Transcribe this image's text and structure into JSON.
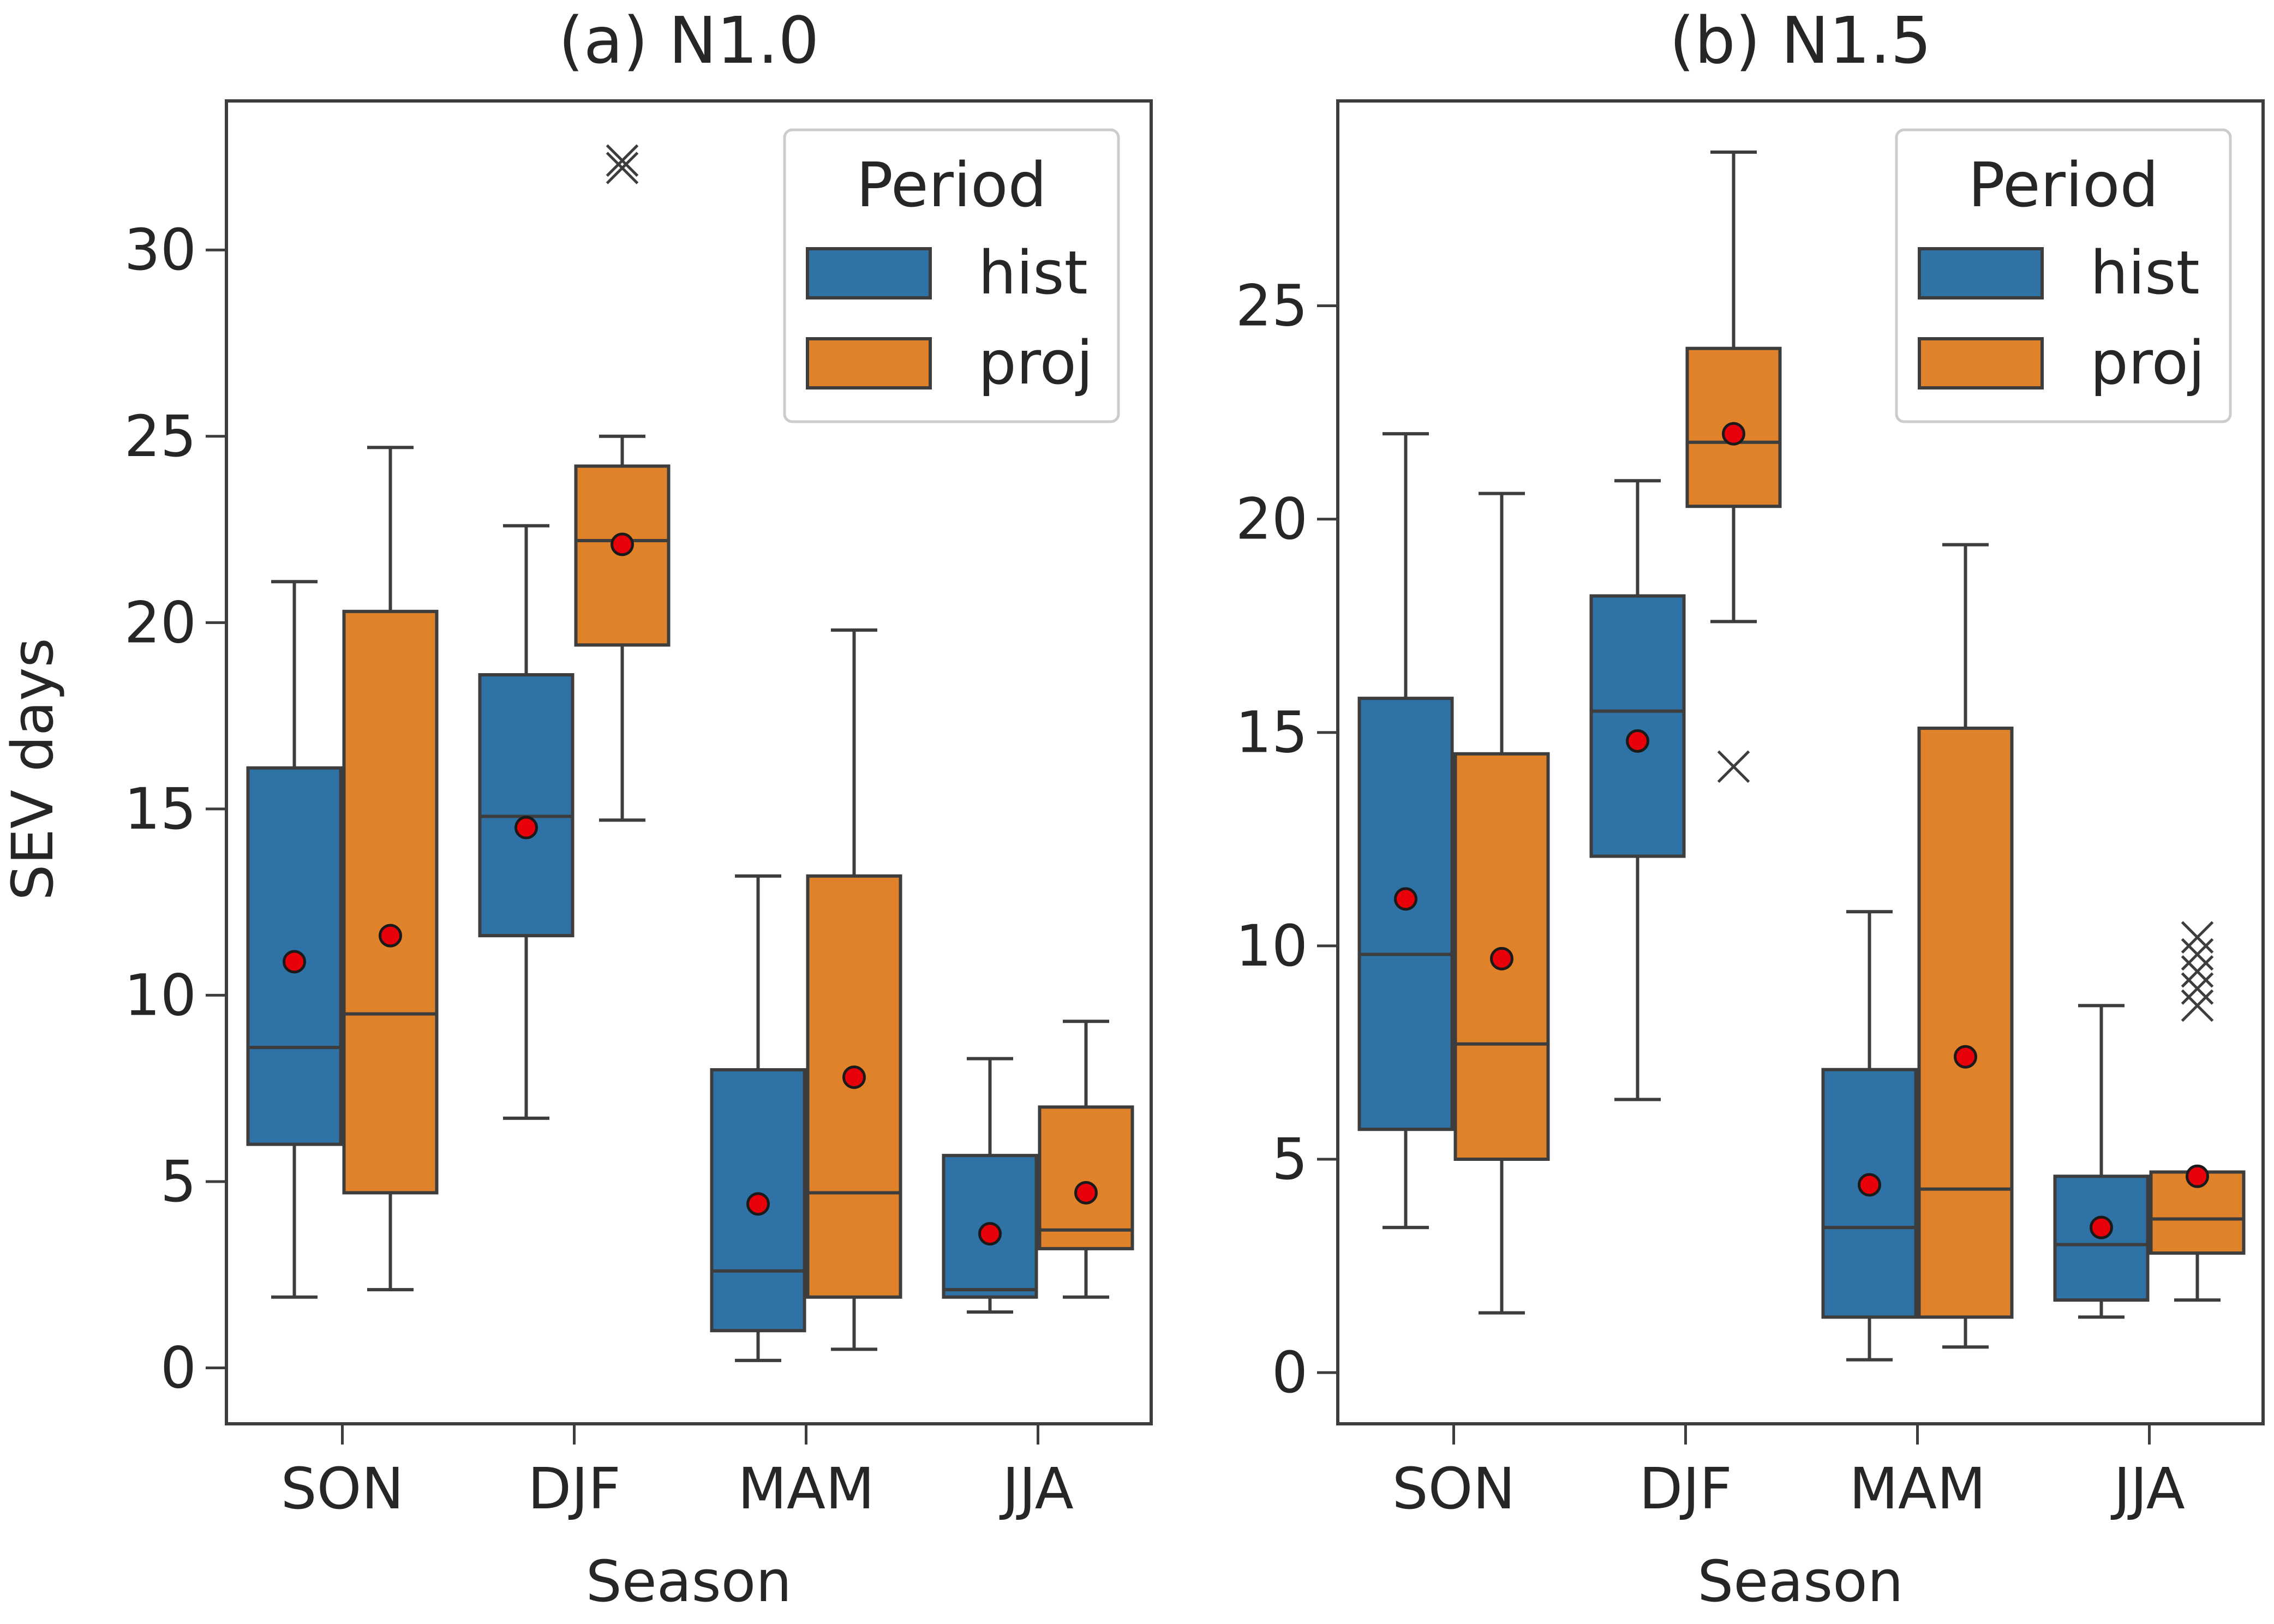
{
  "chart_data": [
    {
      "type": "box",
      "title": "(a) N1.0",
      "xlabel": "Season",
      "ylabel": "SEV days",
      "categories": [
        "SON",
        "DJF",
        "MAM",
        "JJA"
      ],
      "ylim": [
        -1.5,
        34.0
      ],
      "yticks": [
        0,
        5,
        10,
        15,
        20,
        25,
        30
      ],
      "legend": {
        "title": "Period",
        "position": "top-right",
        "entries": [
          "hist",
          "proj"
        ]
      },
      "series": [
        {
          "name": "hist",
          "color": "#2f72a6",
          "boxes": [
            {
              "category": "SON",
              "whisker_low": 1.9,
              "q1": 6.0,
              "median": 8.6,
              "q3": 16.1,
              "whisker_high": 21.1,
              "mean": 10.9,
              "outliers": []
            },
            {
              "category": "DJF",
              "whisker_low": 6.7,
              "q1": 11.6,
              "median": 14.8,
              "q3": 18.6,
              "whisker_high": 22.6,
              "mean": 14.5,
              "outliers": []
            },
            {
              "category": "MAM",
              "whisker_low": 0.2,
              "q1": 1.0,
              "median": 2.6,
              "q3": 8.0,
              "whisker_high": 13.2,
              "mean": 4.4,
              "outliers": []
            },
            {
              "category": "JJA",
              "whisker_low": 1.5,
              "q1": 1.9,
              "median": 2.1,
              "q3": 5.7,
              "whisker_high": 8.3,
              "mean": 3.6,
              "outliers": []
            }
          ]
        },
        {
          "name": "proj",
          "color": "#e0822a",
          "boxes": [
            {
              "category": "SON",
              "whisker_low": 2.1,
              "q1": 4.7,
              "median": 9.5,
              "q3": 20.3,
              "whisker_high": 24.7,
              "mean": 11.6,
              "outliers": []
            },
            {
              "category": "DJF",
              "whisker_low": 14.7,
              "q1": 19.4,
              "median": 22.2,
              "q3": 24.2,
              "whisker_high": 25.0,
              "mean": 22.1,
              "outliers": [
                32.2,
                32.4
              ]
            },
            {
              "category": "MAM",
              "whisker_low": 0.5,
              "q1": 1.9,
              "median": 4.7,
              "q3": 13.2,
              "whisker_high": 19.8,
              "mean": 7.8,
              "outliers": []
            },
            {
              "category": "JJA",
              "whisker_low": 1.9,
              "q1": 3.2,
              "median": 3.7,
              "q3": 7.0,
              "whisker_high": 9.3,
              "mean": 4.7,
              "outliers": []
            }
          ]
        }
      ]
    },
    {
      "type": "box",
      "title": "(b) N1.5",
      "xlabel": "Season",
      "ylabel": "",
      "categories": [
        "SON",
        "DJF",
        "MAM",
        "JJA"
      ],
      "ylim": [
        -1.2,
        29.8
      ],
      "yticks": [
        0,
        5,
        10,
        15,
        20,
        25
      ],
      "legend": {
        "title": "Period",
        "position": "top-right",
        "entries": [
          "hist",
          "proj"
        ]
      },
      "series": [
        {
          "name": "hist",
          "color": "#2f72a6",
          "boxes": [
            {
              "category": "SON",
              "whisker_low": 3.4,
              "q1": 5.7,
              "median": 9.8,
              "q3": 15.8,
              "whisker_high": 22.0,
              "mean": 11.1,
              "outliers": []
            },
            {
              "category": "DJF",
              "whisker_low": 6.4,
              "q1": 12.1,
              "median": 15.5,
              "q3": 18.2,
              "whisker_high": 20.9,
              "mean": 14.8,
              "outliers": []
            },
            {
              "category": "MAM",
              "whisker_low": 0.3,
              "q1": 1.3,
              "median": 3.4,
              "q3": 7.1,
              "whisker_high": 10.8,
              "mean": 4.4,
              "outliers": []
            },
            {
              "category": "JJA",
              "whisker_low": 1.3,
              "q1": 1.7,
              "median": 3.0,
              "q3": 4.6,
              "whisker_high": 8.6,
              "mean": 3.4,
              "outliers": []
            }
          ]
        },
        {
          "name": "proj",
          "color": "#e0822a",
          "boxes": [
            {
              "category": "SON",
              "whisker_low": 1.4,
              "q1": 5.0,
              "median": 7.7,
              "q3": 14.5,
              "whisker_high": 20.6,
              "mean": 9.7,
              "outliers": []
            },
            {
              "category": "DJF",
              "whisker_low": 17.6,
              "q1": 20.3,
              "median": 21.8,
              "q3": 24.0,
              "whisker_high": 28.6,
              "mean": 22.0,
              "outliers": [
                14.2
              ]
            },
            {
              "category": "MAM",
              "whisker_low": 0.6,
              "q1": 1.3,
              "median": 4.3,
              "q3": 15.1,
              "whisker_high": 19.4,
              "mean": 7.4,
              "outliers": []
            },
            {
              "category": "JJA",
              "whisker_low": 1.7,
              "q1": 2.8,
              "median": 3.6,
              "q3": 4.7,
              "whisker_high": 4.7,
              "mean": 4.6,
              "outliers": [
                8.6,
                9.0,
                9.4,
                9.8,
                10.2
              ]
            }
          ]
        }
      ]
    }
  ],
  "colors": {
    "hist": "#2f72a6",
    "proj": "#e0822a",
    "mean_marker": "#e8000b",
    "line": "#3d3d3d",
    "text": "#262626"
  }
}
